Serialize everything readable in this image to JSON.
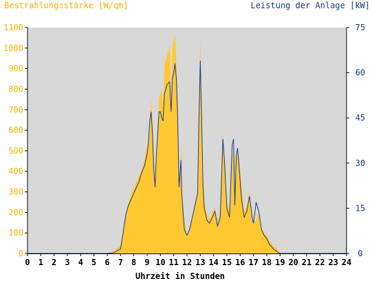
{
  "colors": {
    "plot_bg": "#d8d8d8",
    "irradiance_fill": "#ffc832",
    "power_line": "#1a3a8c",
    "left_axis_text": "#f2b705",
    "right_axis_text": "#1a3a8c"
  },
  "chart_data": {
    "type": "area",
    "title": "",
    "left_axis_label": "Bestrahlungsstärke [W/qm]",
    "right_axis_label": "Leistung der Anlage [kW]",
    "xlabel": "Uhrzeit in Stunden",
    "xlim": [
      0,
      24
    ],
    "ylim_left": [
      0,
      1100
    ],
    "ylim_right": [
      0,
      75
    ],
    "x_ticks": [
      "0",
      "1",
      "2",
      "3",
      "4",
      "5",
      "6",
      "7",
      "8",
      "9",
      "10",
      "11",
      "12",
      "13",
      "14",
      "15",
      "16",
      "17",
      "18",
      "19",
      "20",
      "21",
      "22",
      "23",
      "24"
    ],
    "y_left_ticks": [
      "0",
      "100",
      "200",
      "300",
      "400",
      "500",
      "600",
      "700",
      "800",
      "900",
      "1000",
      "1100"
    ],
    "y_right_ticks": [
      "0",
      "15",
      "30",
      "45",
      "60",
      "75"
    ],
    "grid": false,
    "series": [
      {
        "name": "Bestrahlungsstärke",
        "axis": "left",
        "style": "area",
        "points": [
          [
            0,
            0
          ],
          [
            6.0,
            0
          ],
          [
            6.3,
            5
          ],
          [
            6.6,
            15
          ],
          [
            7.0,
            40
          ],
          [
            7.2,
            120
          ],
          [
            7.4,
            200
          ],
          [
            7.6,
            250
          ],
          [
            7.8,
            290
          ],
          [
            8.0,
            320
          ],
          [
            8.2,
            350
          ],
          [
            8.4,
            380
          ],
          [
            8.6,
            410
          ],
          [
            8.8,
            460
          ],
          [
            9.0,
            520
          ],
          [
            9.1,
            560
          ],
          [
            9.2,
            650
          ],
          [
            9.3,
            750
          ],
          [
            9.4,
            650
          ],
          [
            9.5,
            470
          ],
          [
            9.6,
            350
          ],
          [
            9.7,
            520
          ],
          [
            9.8,
            620
          ],
          [
            9.9,
            760
          ],
          [
            10.0,
            780
          ],
          [
            10.1,
            800
          ],
          [
            10.2,
            700
          ],
          [
            10.3,
            920
          ],
          [
            10.5,
            960
          ],
          [
            10.7,
            1020
          ],
          [
            10.8,
            700
          ],
          [
            10.9,
            1000
          ],
          [
            11.0,
            1040
          ],
          [
            11.1,
            1070
          ],
          [
            11.2,
            920
          ],
          [
            11.3,
            760
          ],
          [
            11.4,
            330
          ],
          [
            11.5,
            420
          ],
          [
            11.55,
            550
          ],
          [
            11.6,
            330
          ],
          [
            11.8,
            160
          ],
          [
            12.0,
            90
          ],
          [
            12.2,
            120
          ],
          [
            12.4,
            180
          ],
          [
            12.6,
            230
          ],
          [
            12.8,
            280
          ],
          [
            12.9,
            750
          ],
          [
            13.0,
            1040
          ],
          [
            13.1,
            700
          ],
          [
            13.2,
            400
          ],
          [
            13.3,
            250
          ],
          [
            13.5,
            190
          ],
          [
            13.7,
            170
          ],
          [
            13.9,
            200
          ],
          [
            14.1,
            220
          ],
          [
            14.3,
            150
          ],
          [
            14.5,
            200
          ],
          [
            14.7,
            580
          ],
          [
            14.8,
            500
          ],
          [
            15.0,
            250
          ],
          [
            15.2,
            200
          ],
          [
            15.4,
            480
          ],
          [
            15.5,
            500
          ],
          [
            15.6,
            280
          ],
          [
            15.7,
            480
          ],
          [
            15.8,
            510
          ],
          [
            15.9,
            470
          ],
          [
            16.0,
            400
          ],
          [
            16.1,
            330
          ],
          [
            16.3,
            200
          ],
          [
            16.5,
            230
          ],
          [
            16.7,
            300
          ],
          [
            16.9,
            200
          ],
          [
            17.0,
            150
          ],
          [
            17.2,
            160
          ],
          [
            17.4,
            200
          ],
          [
            17.6,
            130
          ],
          [
            17.8,
            100
          ],
          [
            18.0,
            90
          ],
          [
            18.2,
            60
          ],
          [
            18.5,
            40
          ],
          [
            18.8,
            20
          ],
          [
            19.0,
            0
          ],
          [
            24,
            0
          ]
        ]
      },
      {
        "name": "Leistung der Anlage",
        "axis": "right",
        "style": "line",
        "points": [
          [
            0,
            0
          ],
          [
            6.0,
            0
          ],
          [
            6.5,
            0.3
          ],
          [
            7.0,
            1.5
          ],
          [
            7.2,
            7
          ],
          [
            7.4,
            13
          ],
          [
            7.6,
            16
          ],
          [
            7.8,
            18
          ],
          [
            8.0,
            20
          ],
          [
            8.2,
            22
          ],
          [
            8.4,
            24
          ],
          [
            8.6,
            27
          ],
          [
            8.8,
            29
          ],
          [
            9.0,
            33
          ],
          [
            9.1,
            37
          ],
          [
            9.2,
            44
          ],
          [
            9.3,
            47
          ],
          [
            9.4,
            40
          ],
          [
            9.5,
            28
          ],
          [
            9.6,
            22
          ],
          [
            9.7,
            33
          ],
          [
            9.8,
            40
          ],
          [
            9.9,
            47
          ],
          [
            10.0,
            47
          ],
          [
            10.1,
            45
          ],
          [
            10.2,
            44
          ],
          [
            10.3,
            53
          ],
          [
            10.5,
            56
          ],
          [
            10.7,
            57
          ],
          [
            10.8,
            47
          ],
          [
            10.9,
            58
          ],
          [
            11.0,
            60
          ],
          [
            11.1,
            63
          ],
          [
            11.2,
            58
          ],
          [
            11.3,
            45
          ],
          [
            11.4,
            22
          ],
          [
            11.5,
            28
          ],
          [
            11.55,
            31
          ],
          [
            11.6,
            20
          ],
          [
            11.8,
            8
          ],
          [
            12.0,
            6
          ],
          [
            12.2,
            8
          ],
          [
            12.4,
            12
          ],
          [
            12.6,
            16
          ],
          [
            12.8,
            20
          ],
          [
            12.9,
            45
          ],
          [
            13.0,
            64
          ],
          [
            13.1,
            45
          ],
          [
            13.2,
            23
          ],
          [
            13.3,
            15
          ],
          [
            13.5,
            11
          ],
          [
            13.7,
            10
          ],
          [
            13.9,
            12
          ],
          [
            14.1,
            14
          ],
          [
            14.3,
            9
          ],
          [
            14.5,
            12
          ],
          [
            14.7,
            38
          ],
          [
            14.8,
            32
          ],
          [
            15.0,
            15
          ],
          [
            15.2,
            12
          ],
          [
            15.4,
            36
          ],
          [
            15.5,
            38
          ],
          [
            15.6,
            16
          ],
          [
            15.7,
            32
          ],
          [
            15.8,
            35
          ],
          [
            15.9,
            30
          ],
          [
            16.0,
            24
          ],
          [
            16.1,
            18
          ],
          [
            16.3,
            12
          ],
          [
            16.5,
            14
          ],
          [
            16.7,
            19
          ],
          [
            16.9,
            12
          ],
          [
            17.0,
            10
          ],
          [
            17.2,
            17
          ],
          [
            17.4,
            14
          ],
          [
            17.6,
            8
          ],
          [
            17.8,
            6
          ],
          [
            18.0,
            5
          ],
          [
            18.2,
            3
          ],
          [
            18.5,
            1.5
          ],
          [
            18.8,
            0.5
          ],
          [
            19.0,
            0
          ],
          [
            24,
            0
          ]
        ]
      }
    ]
  }
}
